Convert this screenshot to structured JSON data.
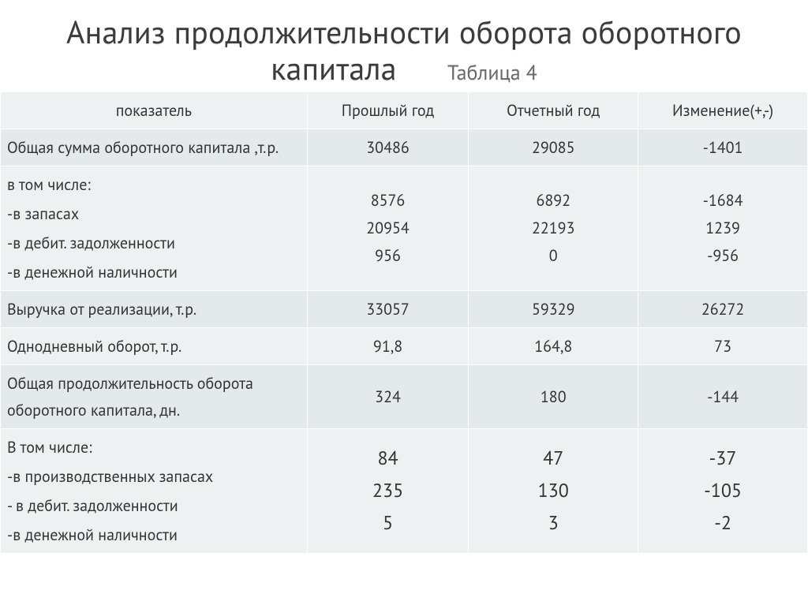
{
  "title": "Анализ продолжительности оборота оборотного капитала",
  "caption": "Таблица 4",
  "colors": {
    "title": "#3b3b3b",
    "caption": "#6a6a6a",
    "row_odd_bg": "#e4e9eb",
    "row_even_bg": "#eef1f2",
    "border": "#ffffff",
    "text": "#333333"
  },
  "columns": [
    "показатель",
    "Прошлый год",
    "Отчетный год",
    "Изменение(+,-)"
  ],
  "rows": {
    "r0": {
      "label": "Общая сумма оборотного капитала ,т.р.",
      "prev": "30486",
      "curr": "29085",
      "delta": "-1401"
    },
    "r1": {
      "label_lines": [
        "в том числе:",
        "-в запасах",
        "-в дебит. задолженности",
        "-в денежной наличности"
      ],
      "prev_lines": [
        "8576",
        "20954",
        "956"
      ],
      "curr_lines": [
        "6892",
        "22193",
        "0"
      ],
      "delta_lines": [
        "-1684",
        "1239",
        "-956"
      ]
    },
    "r2": {
      "label": "Выручка от реализации, т.р.",
      "prev": "33057",
      "curr": "59329",
      "delta": "26272"
    },
    "r3": {
      "label": "Однодневный оборот, т.р.",
      "prev": "91,8",
      "curr": "164,8",
      "delta": "73"
    },
    "r4": {
      "label": "Общая продолжительность оборота оборотного капитала, дн.",
      "prev": "324",
      "curr": "180",
      "delta": "-144"
    },
    "r5": {
      "label_lines": [
        "В том числе:",
        "-в производственных запасах",
        "- в дебит. задолженности",
        "-в денежной наличности"
      ],
      "prev_lines": [
        "84",
        "235",
        "5"
      ],
      "curr_lines": [
        "47",
        "130",
        "3"
      ],
      "delta_lines": [
        "-37",
        "-105",
        "-2"
      ]
    }
  }
}
